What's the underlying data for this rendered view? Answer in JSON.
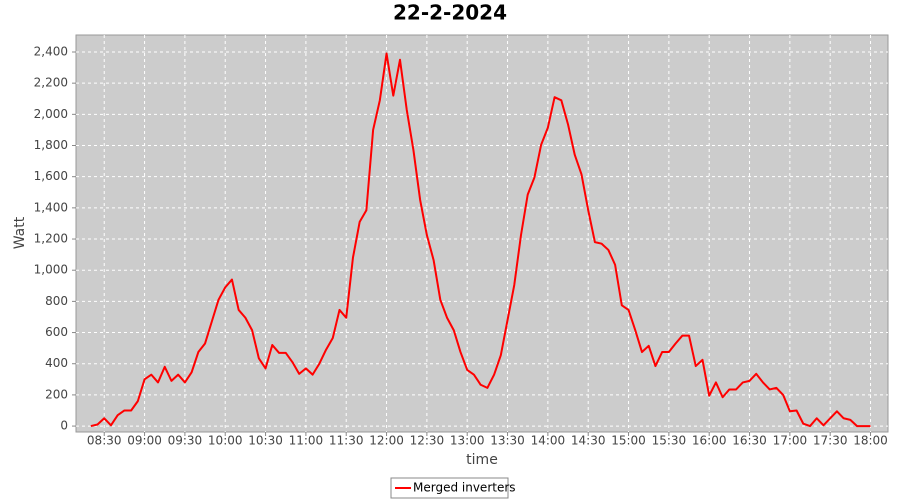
{
  "chart_data": {
    "type": "line",
    "title": "22-2-2024",
    "x_label": "time",
    "y_label": "Watt",
    "x": [
      "08:20",
      "08:25",
      "08:30",
      "08:35",
      "08:40",
      "08:45",
      "08:50",
      "08:55",
      "09:00",
      "09:05",
      "09:10",
      "09:15",
      "09:20",
      "09:25",
      "09:30",
      "09:35",
      "09:40",
      "09:45",
      "09:50",
      "09:55",
      "10:00",
      "10:05",
      "10:10",
      "10:15",
      "10:20",
      "10:25",
      "10:30",
      "10:35",
      "10:40",
      "10:45",
      "10:50",
      "10:55",
      "11:00",
      "11:05",
      "11:10",
      "11:15",
      "11:20",
      "11:25",
      "11:30",
      "11:35",
      "11:40",
      "11:45",
      "11:50",
      "11:55",
      "12:00",
      "12:05",
      "12:10",
      "12:15",
      "12:20",
      "12:25",
      "12:30",
      "12:35",
      "12:40",
      "12:45",
      "12:50",
      "12:55",
      "13:00",
      "13:05",
      "13:10",
      "13:15",
      "13:20",
      "13:25",
      "13:30",
      "13:35",
      "13:40",
      "13:45",
      "13:50",
      "13:55",
      "14:00",
      "14:05",
      "14:10",
      "14:15",
      "14:20",
      "14:25",
      "14:30",
      "14:35",
      "14:40",
      "14:45",
      "14:50",
      "14:55",
      "15:00",
      "15:05",
      "15:10",
      "15:15",
      "15:20",
      "15:25",
      "15:30",
      "15:35",
      "15:40",
      "15:45",
      "15:50",
      "15:55",
      "16:00",
      "16:05",
      "16:10",
      "16:15",
      "16:20",
      "16:25",
      "16:30",
      "16:35",
      "16:40",
      "16:45",
      "16:50",
      "16:55",
      "17:00",
      "17:05",
      "17:10",
      "17:15",
      "17:20",
      "17:25",
      "17:30",
      "17:35",
      "17:40",
      "17:45",
      "17:50",
      "17:55",
      "18:00"
    ],
    "series": [
      {
        "name": "Merged inverters",
        "color": "#ff0000",
        "values": [
          0,
          10,
          50,
          5,
          70,
          100,
          100,
          160,
          300,
          330,
          280,
          380,
          290,
          330,
          280,
          345,
          475,
          530,
          670,
          810,
          890,
          940,
          745,
          695,
          615,
          435,
          370,
          520,
          470,
          470,
          410,
          335,
          370,
          330,
          400,
          490,
          565,
          745,
          695,
          1080,
          1310,
          1385,
          1900,
          2090,
          2390,
          2120,
          2350,
          2030,
          1770,
          1450,
          1225,
          1065,
          810,
          695,
          615,
          475,
          360,
          330,
          265,
          245,
          330,
          455,
          680,
          905,
          1225,
          1485,
          1595,
          1805,
          1915,
          2110,
          2090,
          1935,
          1740,
          1615,
          1385,
          1180,
          1170,
          1130,
          1035,
          775,
          745,
          615,
          475,
          515,
          385,
          475,
          475,
          530,
          580,
          580,
          385,
          425,
          195,
          280,
          185,
          235,
          235,
          280,
          290,
          335,
          280,
          235,
          245,
          200,
          95,
          100,
          15,
          0,
          50,
          5,
          50,
          95,
          50,
          40,
          0,
          0,
          0
        ]
      }
    ],
    "xlim": [
      "08:09",
      "18:13"
    ],
    "xticks": [
      "08:30",
      "09:00",
      "09:30",
      "10:00",
      "10:30",
      "11:00",
      "11:30",
      "12:00",
      "12:30",
      "13:00",
      "13:30",
      "14:00",
      "14:30",
      "15:00",
      "15:30",
      "16:00",
      "16:30",
      "17:00",
      "17:30",
      "18:00"
    ],
    "ylim": [
      -38,
      2509
    ],
    "yticks": [
      0,
      200,
      400,
      600,
      800,
      {
        "value": 1000,
        "label": "1,000"
      },
      {
        "value": 1200,
        "label": "1,200"
      },
      {
        "value": 1400,
        "label": "1,400"
      },
      {
        "value": 1600,
        "label": "1,600"
      },
      {
        "value": 1800,
        "label": "1,800"
      },
      {
        "value": 2000,
        "label": "2,000"
      },
      {
        "value": 2200,
        "label": "2,200"
      },
      {
        "value": 2400,
        "label": "2,400"
      }
    ],
    "grid": true
  }
}
